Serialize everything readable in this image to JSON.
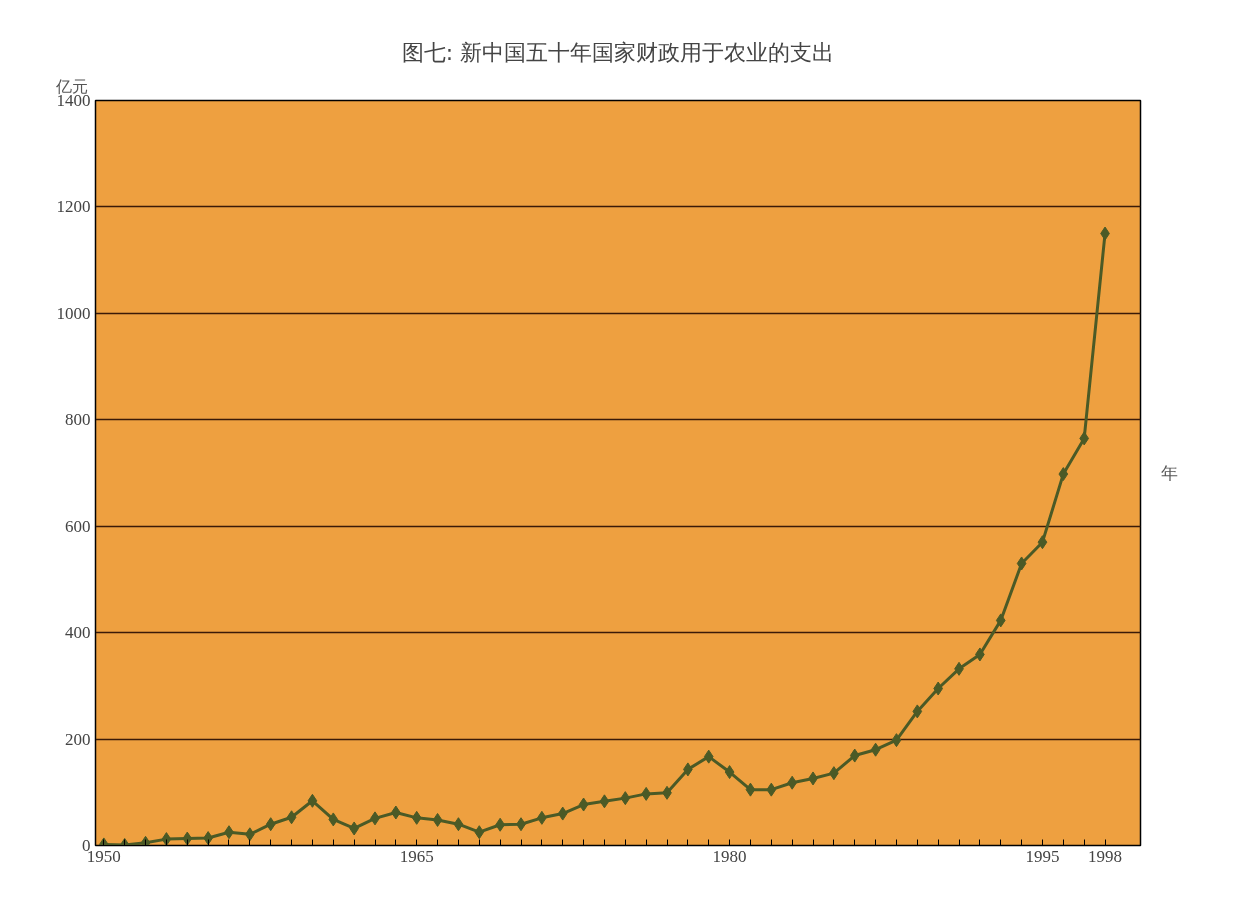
{
  "chart_data": {
    "type": "line",
    "title": "图七: 新中国五十年国家财政用于农业的支出",
    "ylabel": "亿元",
    "xlabel": "年",
    "x": [
      1950,
      1951,
      1952,
      1953,
      1954,
      1955,
      1956,
      1957,
      1958,
      1959,
      1960,
      1961,
      1962,
      1963,
      1964,
      1965,
      1966,
      1967,
      1968,
      1969,
      1970,
      1971,
      1972,
      1973,
      1974,
      1975,
      1976,
      1977,
      1978,
      1979,
      1980,
      1981,
      1982,
      1983,
      1984,
      1985,
      1986,
      1987,
      1988,
      1989,
      1990,
      1991,
      1992,
      1993,
      1994,
      1995,
      1996,
      1997,
      1998
    ],
    "series": [
      {
        "color": "#4b5a26",
        "values": [
          2,
          1,
          5,
          12,
          13,
          14,
          25,
          21,
          40,
          53,
          84,
          49,
          32,
          51,
          62,
          52,
          48,
          40,
          25,
          39,
          40,
          52,
          60,
          77,
          83,
          89,
          97,
          99,
          143,
          167,
          138,
          105,
          105,
          118,
          126,
          136,
          169,
          180,
          198,
          252,
          295,
          332,
          359,
          423,
          530,
          570,
          698,
          765,
          1150
        ]
      }
    ],
    "xlim": [
      1949.6,
      1999.7
    ],
    "ylim": [
      0,
      1400
    ],
    "xticks": [
      1950,
      {
        "value": 1951,
        "label": null
      },
      {
        "value": 1952,
        "label": null
      },
      {
        "value": 1953,
        "label": null
      },
      {
        "value": 1954,
        "label": null
      },
      {
        "value": 1955,
        "label": null
      },
      {
        "value": 1956,
        "label": null
      },
      {
        "value": 1957,
        "label": null
      },
      {
        "value": 1958,
        "label": null
      },
      {
        "value": 1959,
        "label": null
      },
      {
        "value": 1960,
        "label": null
      },
      {
        "value": 1961,
        "label": null
      },
      {
        "value": 1962,
        "label": null
      },
      {
        "value": 1963,
        "label": null
      },
      {
        "value": 1964,
        "label": null
      },
      1965,
      {
        "value": 1966,
        "label": null
      },
      {
        "value": 1967,
        "label": null
      },
      {
        "value": 1968,
        "label": null
      },
      {
        "value": 1969,
        "label": null
      },
      {
        "value": 1970,
        "label": null
      },
      {
        "value": 1971,
        "label": null
      },
      {
        "value": 1972,
        "label": null
      },
      {
        "value": 1973,
        "label": null
      },
      {
        "value": 1974,
        "label": null
      },
      {
        "value": 1975,
        "label": null
      },
      {
        "value": 1976,
        "label": null
      },
      {
        "value": 1977,
        "label": null
      },
      {
        "value": 1978,
        "label": null
      },
      {
        "value": 1979,
        "label": null
      },
      1980,
      {
        "value": 1981,
        "label": null
      },
      {
        "value": 1982,
        "label": null
      },
      {
        "value": 1983,
        "label": null
      },
      {
        "value": 1984,
        "label": null
      },
      {
        "value": 1985,
        "label": null
      },
      {
        "value": 1986,
        "label": null
      },
      {
        "value": 1987,
        "label": null
      },
      {
        "value": 1988,
        "label": null
      },
      {
        "value": 1989,
        "label": null
      },
      {
        "value": 1990,
        "label": null
      },
      {
        "value": 1991,
        "label": null
      },
      {
        "value": 1992,
        "label": null
      },
      {
        "value": 1993,
        "label": null
      },
      {
        "value": 1994,
        "label": null
      },
      1995,
      {
        "value": 1996,
        "label": null
      },
      {
        "value": 1997,
        "label": null
      },
      1998
    ],
    "yticks": [
      0,
      200,
      400,
      600,
      800,
      1000,
      1200,
      1400
    ],
    "grid": "y",
    "marker": "diamond",
    "line_style": "solid"
  }
}
